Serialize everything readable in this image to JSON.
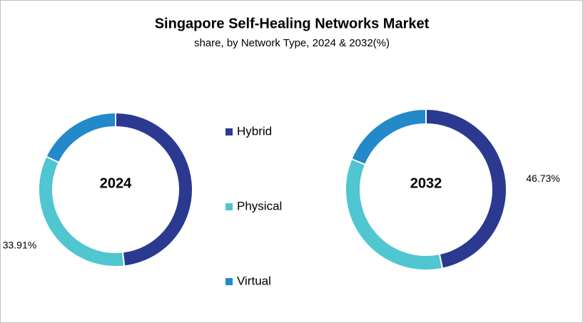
{
  "chart_data": [
    {
      "type": "donut",
      "title": "Singapore Self-Healing Networks Market",
      "subtitle": "share, by Network Type, 2024 & 2032(%)",
      "center_label": "2024",
      "categories": [
        "Hybrid",
        "Physical",
        "Virtual"
      ],
      "colors": [
        "#2b3990",
        "#4fc6d0",
        "#2389c9"
      ],
      "values": [
        48.2,
        33.91,
        17.89
      ],
      "value_labels": [
        null,
        "33.91%",
        null
      ],
      "legend": "center"
    },
    {
      "type": "donut",
      "center_label": "2032",
      "categories": [
        "Hybrid",
        "Physical",
        "Virtual"
      ],
      "colors": [
        "#2b3990",
        "#4fc6d0",
        "#2389c9"
      ],
      "values": [
        46.73,
        34.5,
        18.77
      ],
      "value_labels": [
        "46.73%",
        null,
        null
      ]
    }
  ]
}
